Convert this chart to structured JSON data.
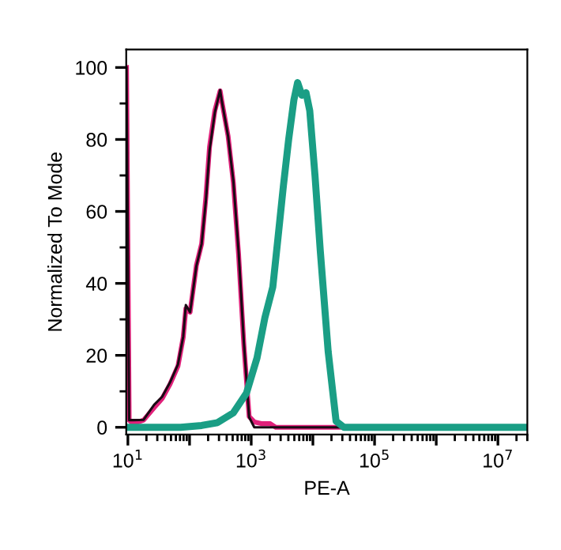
{
  "chart_data": {
    "type": "line",
    "xlabel": "PE-A",
    "ylabel": "Normalized To Mode",
    "log": "x",
    "xlim": [
      9.4,
      30000000
    ],
    "ylim": [
      -2,
      105
    ],
    "xticks": [
      {
        "value": 10,
        "label": "10$^{1}$"
      },
      {
        "value": 100,
        "label": null
      },
      {
        "value": 1000,
        "label": "10$^{3}$"
      },
      {
        "value": 10000,
        "label": null
      },
      {
        "value": 100000,
        "label": "10$^{5}$"
      },
      {
        "value": 1000000,
        "label": null
      },
      {
        "value": 10000000,
        "label": "10$^{7}$"
      }
    ],
    "yticks": [
      0,
      20,
      40,
      60,
      80,
      100
    ],
    "grid": false,
    "legend": false,
    "marker": "none",
    "line_style": "solid",
    "series": [
      {
        "color": "#e0207a",
        "x": [
          9.5,
          10.5,
          12.2,
          18,
          26.7,
          36,
          48.3,
          64.9,
          78.9,
          87.1,
          102,
          129,
          157,
          184,
          211,
          257,
          313,
          331,
          421,
          513,
          624,
          759,
          925,
          1122,
          1500,
          2042,
          2500,
          28000000
        ],
        "values": [
          100,
          2,
          1,
          2,
          5.5,
          8,
          12,
          17,
          25,
          33,
          32,
          45,
          51,
          64,
          78,
          88,
          93.5,
          91,
          81,
          68,
          48,
          23,
          3,
          1.5,
          1,
          1,
          0,
          0
        ]
      },
      {
        "color": "#1a0a14",
        "x": [
          9.5,
          10.5,
          12.2,
          18,
          26.7,
          36,
          48.3,
          64.9,
          78.9,
          87.1,
          102,
          129,
          157,
          184,
          211,
          257,
          313,
          331,
          421,
          513,
          624,
          759,
          925,
          1122,
          2042,
          28000000
        ],
        "values": [
          100,
          2,
          2,
          2.1,
          6.3,
          8.5,
          12.5,
          17.5,
          25.2,
          34,
          32,
          44.8,
          51,
          63,
          77,
          87.5,
          93.7,
          91,
          81,
          68.5,
          48.9,
          23.7,
          2.8,
          0,
          0,
          0
        ]
      },
      {
        "color": "#1a9e85",
        "x": [
          9.5,
          71.6,
          157,
          284,
          512,
          837,
          1242,
          1667,
          2239,
          2729,
          3319,
          4046,
          4920,
          5649,
          6622,
          7745,
          8892,
          10814,
          13183,
          17701,
          23768,
          31915,
          85507,
          28000000
        ],
        "values": [
          0,
          0,
          0.5,
          1.3,
          4,
          9.5,
          19.3,
          30.5,
          39,
          53,
          67,
          80,
          91,
          95.8,
          92.3,
          93,
          88,
          70,
          49,
          21,
          1.7,
          0,
          0,
          0
        ]
      }
    ]
  }
}
